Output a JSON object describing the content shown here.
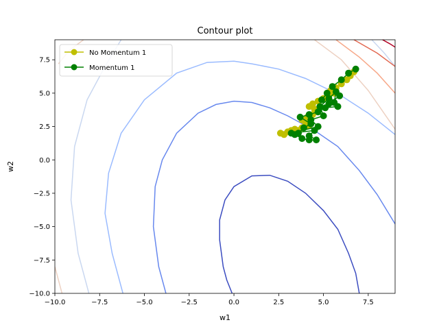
{
  "chart_data": {
    "type": "line",
    "title": "Contour plot",
    "xlabel": "w1",
    "ylabel": "w2",
    "xlim": [
      -10.0,
      9.0
    ],
    "ylim": [
      -10.0,
      9.0
    ],
    "x_ticks": [
      -10.0,
      -7.5,
      -5.0,
      -2.5,
      0.0,
      2.5,
      5.0,
      7.5
    ],
    "x_tick_labels": [
      "−10.0",
      "−7.5",
      "−5.0",
      "−2.5",
      "0.0",
      "2.5",
      "5.0",
      "7.5"
    ],
    "y_ticks": [
      -10.0,
      -7.5,
      -5.0,
      -2.5,
      0.0,
      2.5,
      5.0,
      7.5
    ],
    "y_tick_labels": [
      "−10.0",
      "−7.5",
      "−5.0",
      "−2.5",
      "0.0",
      "2.5",
      "5.0",
      "7.5"
    ],
    "grid": false,
    "legend_position": "top-left",
    "contours": [
      {
        "color": "#3b4cc0",
        "points": [
          [
            -0.1,
            -10
          ],
          [
            -0.4,
            -9
          ],
          [
            -0.6,
            -8
          ],
          [
            -0.8,
            -6
          ],
          [
            -0.8,
            -4.5
          ],
          [
            -0.5,
            -3
          ],
          [
            0,
            -2
          ],
          [
            1,
            -1.2
          ],
          [
            2,
            -1.15
          ],
          [
            3,
            -1.6
          ],
          [
            4,
            -2.5
          ],
          [
            5,
            -3.8
          ],
          [
            5.8,
            -5.2
          ],
          [
            6.4,
            -7
          ],
          [
            6.8,
            -8.5
          ],
          [
            7.0,
            -10
          ]
        ]
      },
      {
        "color": "#6788ee",
        "points": [
          [
            -3.8,
            -10
          ],
          [
            -4.2,
            -8
          ],
          [
            -4.5,
            -5
          ],
          [
            -4.4,
            -2
          ],
          [
            -4,
            0
          ],
          [
            -3.2,
            2
          ],
          [
            -2,
            3.5
          ],
          [
            -1,
            4.15
          ],
          [
            0,
            4.4
          ],
          [
            1,
            4.3
          ],
          [
            2,
            3.9
          ],
          [
            3,
            3.3
          ],
          [
            4.5,
            2.2
          ],
          [
            5.8,
            1
          ],
          [
            7,
            -0.8
          ],
          [
            8,
            -2.6
          ],
          [
            9,
            -4.8
          ]
        ]
      },
      {
        "color": "#9abbff",
        "points": [
          [
            -6.2,
            -10
          ],
          [
            -6.8,
            -7
          ],
          [
            -7.2,
            -4
          ],
          [
            -7.0,
            -1
          ],
          [
            -6.3,
            2
          ],
          [
            -5,
            4.5
          ],
          [
            -3.2,
            6.5
          ],
          [
            -1.5,
            7.3
          ],
          [
            0,
            7.4
          ],
          [
            1,
            7.2
          ],
          [
            2.5,
            6.8
          ],
          [
            4,
            6.1
          ],
          [
            6,
            4.8
          ],
          [
            7.5,
            3.5
          ],
          [
            9,
            1.9
          ]
        ]
      },
      {
        "color": "#c9d7f0",
        "points": [
          [
            -8.1,
            -10
          ],
          [
            -8.7,
            -7
          ],
          [
            -9.1,
            -3
          ],
          [
            -8.9,
            1
          ],
          [
            -8.2,
            4.5
          ],
          [
            -7.2,
            7
          ],
          [
            -6.3,
            9
          ]
        ]
      },
      {
        "color": "#c9d7f0",
        "points": [
          [
            7.7,
            9
          ],
          [
            8.4,
            8
          ],
          [
            9,
            7
          ]
        ]
      },
      {
        "color": "#edd1c2",
        "points": [
          [
            -9.6,
            -10
          ],
          [
            -10.0,
            -8
          ]
        ]
      },
      {
        "color": "#edd1c2",
        "points": [
          [
            -9.8,
            7.2
          ],
          [
            -9.2,
            8.2
          ],
          [
            -8.4,
            9
          ]
        ]
      },
      {
        "color": "#edd1c2",
        "points": [
          [
            4.5,
            9
          ],
          [
            6,
            7.5
          ],
          [
            7.5,
            5.2
          ],
          [
            9,
            2.3
          ]
        ]
      },
      {
        "color": "#f7a889",
        "points": [
          [
            5.7,
            9
          ],
          [
            7,
            7.7
          ],
          [
            8,
            6.5
          ],
          [
            9,
            5
          ]
        ]
      },
      {
        "color": "#e26952",
        "points": [
          [
            6.7,
            9
          ],
          [
            8,
            8
          ],
          [
            9,
            7
          ]
        ]
      },
      {
        "color": "#b40426",
        "points": [
          [
            8.3,
            9
          ],
          [
            8.7,
            8.7
          ],
          [
            9,
            8.45
          ]
        ]
      }
    ],
    "series": [
      {
        "name": "No Momentum 1",
        "color": "#bfbf00",
        "marker": "circle",
        "points": [
          [
            2.6,
            2
          ],
          [
            2.8,
            1.9
          ],
          [
            3.0,
            2.1
          ],
          [
            3.2,
            2.2
          ],
          [
            3.4,
            2.3
          ],
          [
            3.6,
            2.2
          ],
          [
            3.8,
            2.4
          ],
          [
            4.0,
            2.5
          ],
          [
            4.2,
            2.6
          ],
          [
            4.0,
            2.8
          ],
          [
            3.8,
            3.0
          ],
          [
            4.1,
            3.2
          ],
          [
            4.4,
            3.4
          ],
          [
            4.7,
            3.6
          ],
          [
            4.5,
            3.8
          ],
          [
            4.2,
            4.0
          ],
          [
            4.4,
            4.2
          ],
          [
            4.7,
            4.4
          ],
          [
            5.0,
            4.6
          ],
          [
            5.3,
            4.8
          ],
          [
            5.6,
            5.0
          ],
          [
            5.4,
            5.2
          ],
          [
            5.7,
            5.4
          ],
          [
            6.0,
            5.7
          ],
          [
            6.3,
            6.0
          ],
          [
            6.5,
            6.3
          ],
          [
            6.7,
            6.6
          ]
        ]
      },
      {
        "name": "Momentum 1",
        "color": "#008000",
        "marker": "circle",
        "points": [
          [
            6.8,
            6.8
          ],
          [
            6.4,
            6.5
          ],
          [
            6.0,
            6.0
          ],
          [
            5.5,
            5.5
          ],
          [
            5.9,
            4.8
          ],
          [
            5.3,
            4.2
          ],
          [
            5.8,
            4.0
          ],
          [
            5.1,
            3.9
          ],
          [
            4.7,
            3.6
          ],
          [
            4.2,
            3.4
          ],
          [
            3.7,
            3.2
          ],
          [
            4.3,
            2.7
          ],
          [
            3.9,
            2.4
          ],
          [
            3.6,
            2.0
          ],
          [
            3.4,
            1.9
          ],
          [
            3.8,
            1.6
          ],
          [
            4.2,
            1.5
          ],
          [
            4.6,
            1.5
          ],
          [
            4.2,
            1.8
          ],
          [
            4.5,
            2.2
          ],
          [
            3.2,
            2.0
          ],
          [
            4.7,
            2.5
          ],
          [
            4.3,
            3.0
          ],
          [
            5.0,
            3.3
          ],
          [
            4.8,
            4.0
          ],
          [
            5.3,
            4.6
          ],
          [
            5.7,
            5.1
          ],
          [
            5.6,
            4.3
          ],
          [
            5.2,
            5.0
          ],
          [
            4.9,
            4.5
          ]
        ]
      }
    ]
  }
}
